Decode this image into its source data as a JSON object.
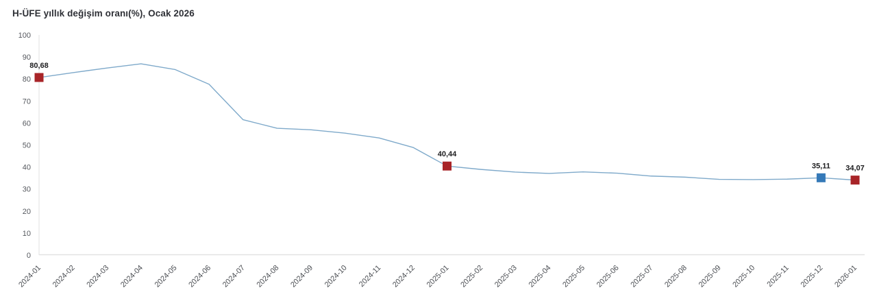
{
  "title": "H-ÜFE yıllık değişim oranı(%), Ocak 2026",
  "colors": {
    "background": "#ffffff",
    "line": "#7ea9ca",
    "marker_red": "#a82428",
    "marker_blue": "#3579b8",
    "y_axis_line": "#ececec",
    "x_axis_line": "#e3e3e3",
    "tick_text": "#55585e",
    "point_label_text": "#1c1c1e",
    "title_text": "#2e3036"
  },
  "chart_data": {
    "type": "line",
    "title": "H-ÜFE yıllık değişim oranı(%), Ocak 2026",
    "xlabel": "",
    "ylabel": "",
    "ylim": [
      0,
      100
    ],
    "y_ticks": [
      0,
      10,
      20,
      30,
      40,
      50,
      60,
      70,
      80,
      90,
      100
    ],
    "grid": "none",
    "legend": "none",
    "categories": [
      "2024-01",
      "2024-02",
      "2024-03",
      "2024-04",
      "2024-05",
      "2024-06",
      "2024-07",
      "2024-08",
      "2024-09",
      "2024-10",
      "2024-11",
      "2024-12",
      "2025-01",
      "2025-02",
      "2025-03",
      "2025-04",
      "2025-05",
      "2025-06",
      "2025-07",
      "2025-08",
      "2025-09",
      "2025-10",
      "2025-11",
      "2025-12",
      "2026-01"
    ],
    "values": [
      80.68,
      82.9,
      85.0,
      86.9,
      84.3,
      77.6,
      61.5,
      57.6,
      56.9,
      55.4,
      53.2,
      48.9,
      40.44,
      38.9,
      37.7,
      37.1,
      37.8,
      37.2,
      35.9,
      35.4,
      34.4,
      34.3,
      34.5,
      35.11,
      34.07
    ],
    "labeled_points": [
      {
        "index": 0,
        "label": "80,68",
        "marker": "red"
      },
      {
        "index": 12,
        "label": "40,44",
        "marker": "red"
      },
      {
        "index": 23,
        "label": "35,11",
        "marker": "blue"
      },
      {
        "index": 24,
        "label": "34,07",
        "marker": "red"
      }
    ]
  }
}
